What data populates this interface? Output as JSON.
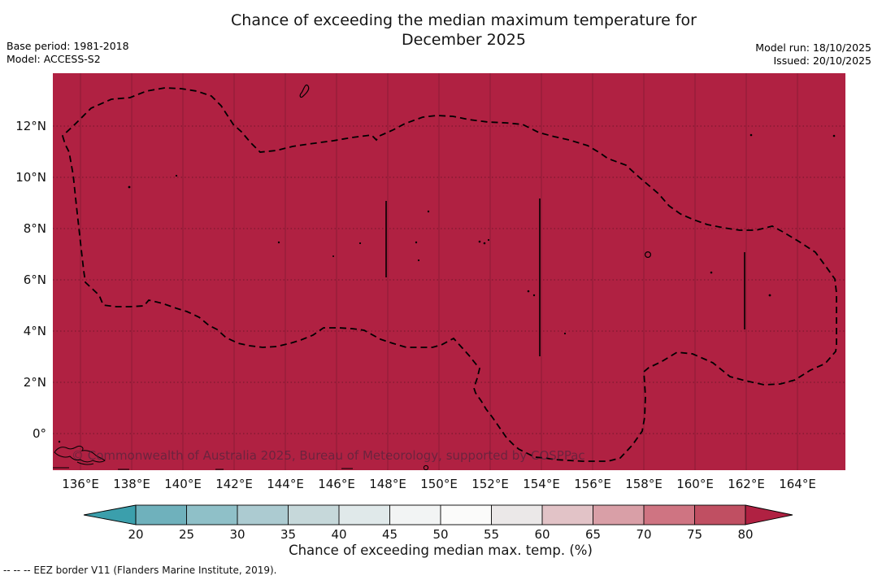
{
  "title": {
    "line1": "Chance of exceeding the median maximum temperature for",
    "line2": "December 2025"
  },
  "meta_left": {
    "base_period": "Base period: 1981-2018",
    "model": "Model: ACCESS-S2"
  },
  "meta_right": {
    "model_run": "Model run: 18/10/2025",
    "issued": "Issued: 20/10/2025"
  },
  "map": {
    "watermark": "© Commonwealth of Australia 2025, Bureau of Meteorology, supported by COSPPac"
  },
  "axes": {
    "y_ticks": [
      "12°N",
      "10°N",
      "8°N",
      "6°N",
      "4°N",
      "2°N",
      "0°"
    ],
    "x_ticks": [
      "136°E",
      "138°E",
      "140°E",
      "142°E",
      "144°E",
      "146°E",
      "148°E",
      "150°E",
      "152°E",
      "154°E",
      "156°E",
      "158°E",
      "160°E",
      "162°E",
      "164°E"
    ]
  },
  "colorbar": {
    "label": "Chance of exceeding median max. temp. (%)",
    "tick_labels": [
      "20",
      "25",
      "30",
      "35",
      "40",
      "45",
      "50",
      "55",
      "60",
      "65",
      "70",
      "75",
      "80"
    ],
    "arrow_left_color": "#3b9fac",
    "segment_colors": [
      "#6fb1bc",
      "#8fc0c8",
      "#accbd1",
      "#c6d8da",
      "#e0e9ea",
      "#f2f4f4",
      "#fbfbfa",
      "#ebe8e8",
      "#e2c3c7",
      "#d99fa7",
      "#cf7482",
      "#c04f62"
    ],
    "arrow_right_color": "#b02142"
  },
  "colors": {
    "map_fill": "#b02142",
    "eez_border": "#000000",
    "watermark_text": "rgba(52,38,60,0.55)"
  },
  "footnote": "--  --  -- EEZ border V11 (Flanders Marine Institute, 2019).",
  "chart_data": {
    "type": "heatmap",
    "title": "Chance of exceeding the median maximum temperature for December 2025",
    "region": "Micronesia EEZ region shown with dashed EEZ border; small island outlines plotted",
    "x_axis": {
      "tick_labels_deg_east": [
        136,
        138,
        140,
        142,
        144,
        146,
        148,
        150,
        152,
        154,
        156,
        158,
        160,
        162,
        164
      ],
      "range_deg_east": [
        135,
        166
      ]
    },
    "y_axis": {
      "tick_labels": [
        "12°N",
        "10°N",
        "8°N",
        "6°N",
        "4°N",
        "2°N",
        "0°"
      ],
      "range_deg_north": [
        -1.4,
        14
      ]
    },
    "value_name": "Chance of exceeding median max. temp. (%)",
    "values_summary": "Uniform value above 80% (deep crimson) across the entire mapped area",
    "colorbar_ticks": [
      20,
      25,
      30,
      35,
      40,
      45,
      50,
      55,
      60,
      65,
      70,
      75,
      80
    ],
    "colorbar_range_with_arrows": "below 20 (teal arrow) to above 80 (crimson arrow)",
    "base_period": "1981-2018",
    "model": "ACCESS-S2",
    "model_run": "18/10/2025",
    "issued": "20/10/2025",
    "grid": "on (solid meridians every 2°, dotted parallels every 2°)",
    "legend_note": "EEZ border V11 (Flanders Marine Institute, 2019)."
  }
}
